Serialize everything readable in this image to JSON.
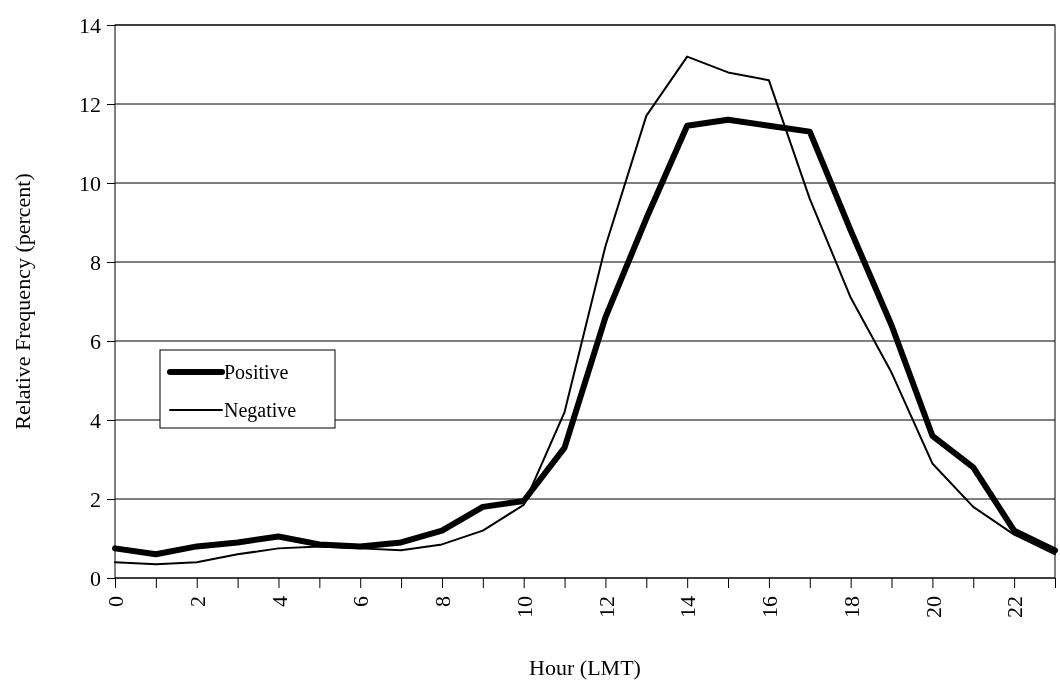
{
  "chart_data": {
    "type": "line",
    "xlabel": "Hour (LMT)",
    "ylabel": "Relative Frequency (percent)",
    "x": [
      0,
      1,
      2,
      3,
      4,
      5,
      6,
      7,
      8,
      9,
      10,
      11,
      12,
      13,
      14,
      15,
      16,
      17,
      18,
      19,
      20,
      21,
      22,
      23
    ],
    "series": [
      {
        "name": "Positive",
        "color": "#000000",
        "values": [
          0.75,
          0.6,
          0.8,
          0.9,
          1.05,
          0.85,
          0.8,
          0.9,
          1.2,
          1.8,
          1.95,
          3.3,
          6.6,
          9.1,
          11.45,
          11.6,
          11.45,
          11.3,
          8.8,
          6.4,
          3.6,
          2.8,
          1.2,
          0.7
        ]
      },
      {
        "name": "Negative",
        "color": "#000000",
        "values": [
          0.4,
          0.35,
          0.4,
          0.6,
          0.75,
          0.8,
          0.75,
          0.7,
          0.85,
          1.2,
          1.85,
          4.2,
          8.4,
          11.7,
          13.2,
          12.8,
          12.6,
          9.6,
          7.1,
          5.2,
          2.9,
          1.8,
          1.1,
          0.6
        ]
      }
    ],
    "xlim": [
      0,
      23
    ],
    "ylim": [
      0,
      14
    ],
    "xticks": [
      0,
      {
        "value": 1,
        "label": null
      },
      2,
      {
        "value": 3,
        "label": null
      },
      4,
      {
        "value": 5,
        "label": null
      },
      6,
      {
        "value": 7,
        "label": null
      },
      8,
      {
        "value": 9,
        "label": null
      },
      10,
      {
        "value": 11,
        "label": null
      },
      12,
      {
        "value": 13,
        "label": null
      },
      14,
      {
        "value": 15,
        "label": null
      },
      16,
      {
        "value": 17,
        "label": null
      },
      18,
      {
        "value": 19,
        "label": null
      },
      20,
      {
        "value": 21,
        "label": null
      },
      22,
      {
        "value": 23,
        "label": null
      }
    ],
    "yticks": [
      0,
      2,
      4,
      6,
      8,
      10,
      12,
      14
    ],
    "grid": "y",
    "legend": "left",
    "marker": "none",
    "line_style": "solid"
  }
}
